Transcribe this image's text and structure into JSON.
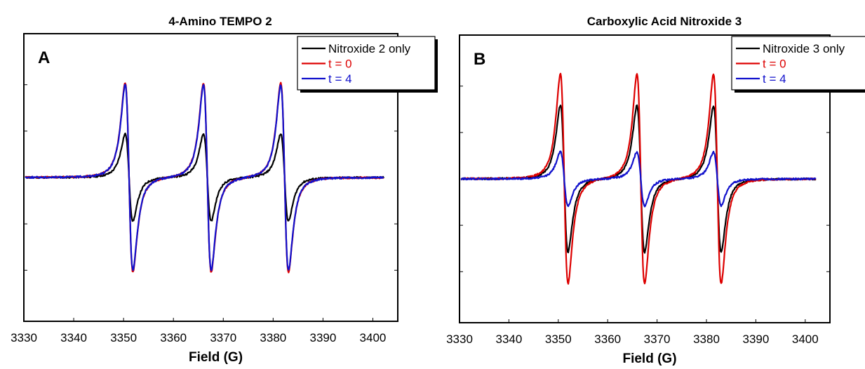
{
  "chart_data": [
    {
      "type": "line",
      "panel_label": "A",
      "title": "4-Amino TEMPO 2",
      "xlabel": "Field (G)",
      "ylabel": "",
      "xlim": [
        3330,
        3405
      ],
      "ylim": [
        -1.55,
        1.55
      ],
      "x_ticks": [
        "3330",
        "3340",
        "3350",
        "3360",
        "3370",
        "3380",
        "3390",
        "3400"
      ],
      "x_tick_values": [
        3330,
        3340,
        3350,
        3360,
        3370,
        3380,
        3390,
        3400
      ],
      "y_tick_values": [
        -1.0,
        -0.5,
        0.5,
        1.0
      ],
      "grid": false,
      "legend_position": "top-right",
      "peak_centers": [
        3351.1,
        3366.8,
        3382.3
      ],
      "series": [
        {
          "name": "Nitroxide 2 only",
          "color": "#000000",
          "amplitude": 0.47,
          "asymmetry": 0.0
        },
        {
          "name": "t = 0",
          "color": "#dd0000",
          "amplitude": 1.02,
          "asymmetry": 0.0
        },
        {
          "name": "t = 4",
          "color": "#1010cc",
          "amplitude": 1.0,
          "asymmetry": 0.0
        }
      ]
    },
    {
      "type": "line",
      "panel_label": "B",
      "title": "Carboxylic Acid Nitroxide 3",
      "xlabel": "Field (G)",
      "ylabel": "",
      "xlim": [
        3330,
        3405
      ],
      "ylim": [
        -1.55,
        1.55
      ],
      "x_ticks": [
        "3330",
        "3340",
        "3350",
        "3360",
        "3370",
        "3380",
        "3390",
        "3400"
      ],
      "x_tick_values": [
        3330,
        3340,
        3350,
        3360,
        3370,
        3380,
        3390,
        3400
      ],
      "y_tick_values": [
        -1.0,
        -0.5,
        0.5,
        1.0
      ],
      "grid": false,
      "legend_position": "top-right",
      "peak_centers": [
        3351.2,
        3366.7,
        3382.2
      ],
      "series": [
        {
          "name": "Nitroxide 3 only",
          "color": "#000000",
          "amplitude": 0.79,
          "asymmetry": 0.0
        },
        {
          "name": "t = 0",
          "color": "#dd0000",
          "amplitude": 1.13,
          "asymmetry": 0.0
        },
        {
          "name": "t = 4",
          "color": "#1010cc",
          "amplitude": 0.29,
          "asymmetry": 0.0
        }
      ]
    }
  ]
}
